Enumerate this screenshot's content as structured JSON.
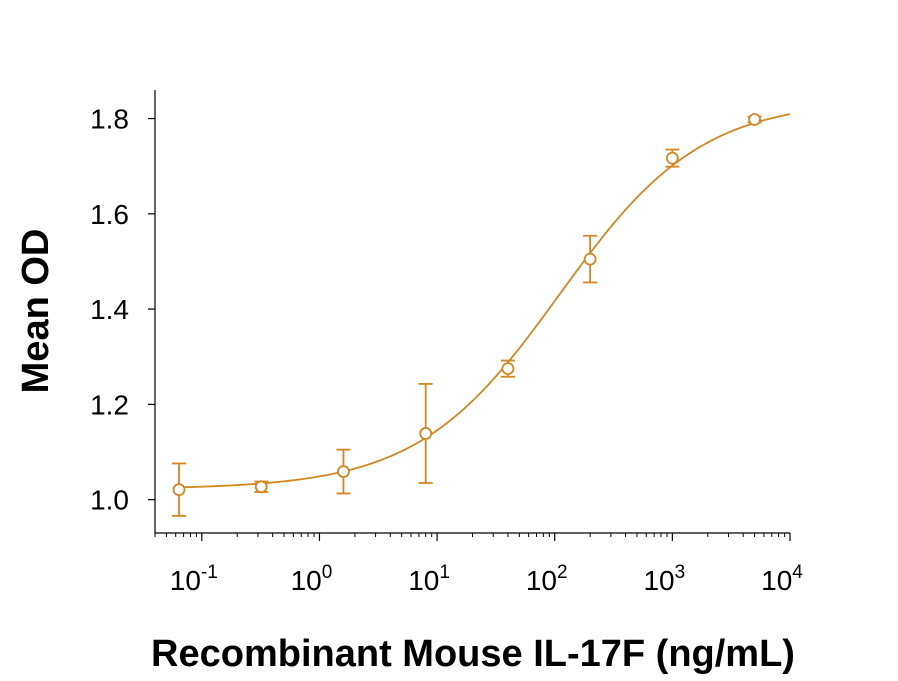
{
  "chart_data": {
    "type": "scatter",
    "xlabel": "Recombinant Mouse IL-17F (ng/mL)",
    "ylabel": "Mean OD",
    "x_scale": "log",
    "xlim": [
      0.04,
      10000
    ],
    "ylim": [
      0.93,
      1.86
    ],
    "x_ticks": [
      {
        "value": 0.1,
        "base": "10",
        "exp": "-1"
      },
      {
        "value": 1,
        "base": "10",
        "exp": "0"
      },
      {
        "value": 10,
        "base": "10",
        "exp": "1"
      },
      {
        "value": 100,
        "base": "10",
        "exp": "2"
      },
      {
        "value": 1000,
        "base": "10",
        "exp": "3"
      },
      {
        "value": 10000,
        "base": "10",
        "exp": "4"
      }
    ],
    "y_ticks": [
      "1.0",
      "1.2",
      "1.4",
      "1.6",
      "1.8"
    ],
    "grid": false,
    "color": "#D4861F",
    "series": [
      {
        "points": [
          {
            "x": 0.064,
            "y": 1.021,
            "err": 0.055
          },
          {
            "x": 0.32,
            "y": 1.027,
            "err": 0.011
          },
          {
            "x": 1.6,
            "y": 1.059,
            "err": 0.046
          },
          {
            "x": 8,
            "y": 1.139,
            "err": 0.104
          },
          {
            "x": 40,
            "y": 1.275,
            "err": 0.017
          },
          {
            "x": 200,
            "y": 1.505,
            "err": 0.049
          },
          {
            "x": 1000,
            "y": 1.717,
            "err": 0.018
          },
          {
            "x": 5000,
            "y": 1.798,
            "err": 0.006
          }
        ],
        "fit": {
          "model": "4PL",
          "bottom": 1.022,
          "top": 1.84,
          "ec50": 110,
          "hill": 0.72
        }
      }
    ]
  }
}
